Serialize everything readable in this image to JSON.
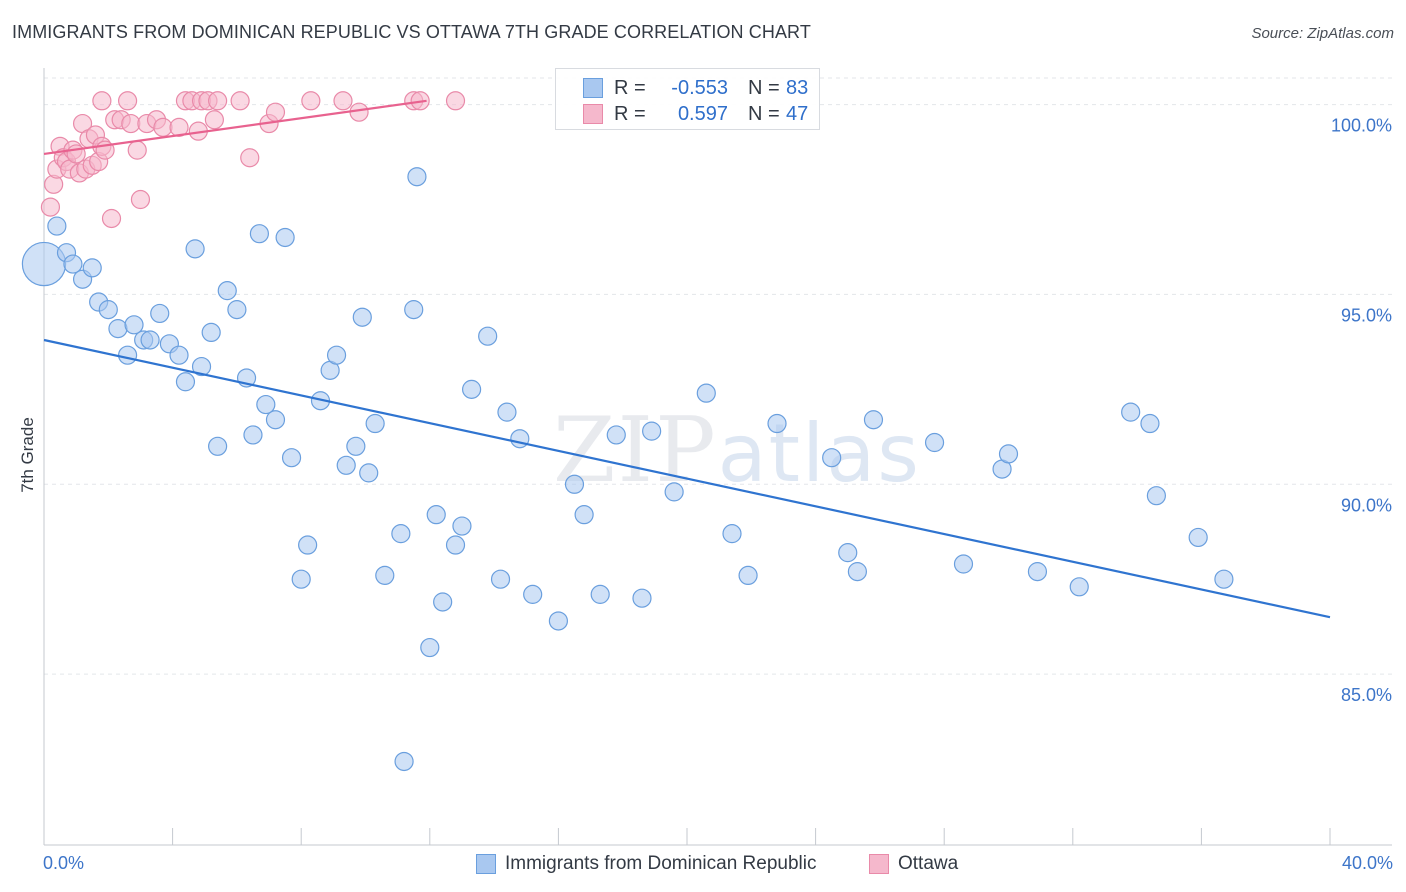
{
  "header": {
    "title": "IMMIGRANTS FROM DOMINICAN REPUBLIC VS OTTAWA 7TH GRADE CORRELATION CHART",
    "source": "Source: ZipAtlas.com"
  },
  "watermark": {
    "zip": "ZIP",
    "atlas": "atlas"
  },
  "legend": {
    "rows": [
      {
        "r_label": "R =",
        "r_value": "-0.553",
        "n_label": "N =",
        "n_value": "83"
      },
      {
        "r_label": "R =",
        "r_value": "0.597",
        "n_label": "N =",
        "n_value": "47"
      }
    ]
  },
  "colors": {
    "blue_fill": "#a9c8f0",
    "blue_stroke": "#6a9fde",
    "blue_line": "#2f74d0",
    "pink_fill": "#f5b8cc",
    "pink_stroke": "#e98aa9",
    "pink_line": "#e8628f",
    "tick_text": "#3d75c9",
    "grid": "#e3e6ea"
  },
  "chart_data": {
    "type": "scatter",
    "title": "IMMIGRANTS FROM DOMINICAN REPUBLIC VS OTTAWA 7TH GRADE CORRELATION CHART",
    "xlabel": "",
    "ylabel": "7th Grade",
    "xlim": [
      0,
      40
    ],
    "ylim": [
      80.5,
      100.7
    ],
    "x_tick_labels": [
      "0.0%",
      "40.0%"
    ],
    "y_ticks": [
      85,
      90,
      95,
      100
    ],
    "y_tick_labels": [
      "85.0%",
      "90.0%",
      "95.0%",
      "100.0%"
    ],
    "grid": true,
    "legend_placement": "top-center",
    "series": [
      {
        "name": "Immigrants from Dominican Republic",
        "color": "#a9c8f0",
        "trend": {
          "x": [
            0,
            40
          ],
          "y": [
            93.8,
            86.5
          ]
        },
        "points": [
          {
            "x": 0.0,
            "y": 95.8,
            "s": 2.4
          },
          {
            "x": 0.4,
            "y": 96.8
          },
          {
            "x": 0.7,
            "y": 96.1
          },
          {
            "x": 0.9,
            "y": 95.8
          },
          {
            "x": 1.2,
            "y": 95.4
          },
          {
            "x": 1.5,
            "y": 95.7
          },
          {
            "x": 1.7,
            "y": 94.8
          },
          {
            "x": 2.0,
            "y": 94.6
          },
          {
            "x": 2.3,
            "y": 94.1
          },
          {
            "x": 2.6,
            "y": 93.4
          },
          {
            "x": 2.8,
            "y": 94.2
          },
          {
            "x": 3.1,
            "y": 93.8
          },
          {
            "x": 3.3,
            "y": 93.8
          },
          {
            "x": 3.6,
            "y": 94.5
          },
          {
            "x": 3.9,
            "y": 93.7
          },
          {
            "x": 4.2,
            "y": 93.4
          },
          {
            "x": 4.4,
            "y": 92.7
          },
          {
            "x": 4.7,
            "y": 96.2
          },
          {
            "x": 4.9,
            "y": 93.1
          },
          {
            "x": 5.2,
            "y": 94.0
          },
          {
            "x": 5.4,
            "y": 91.0
          },
          {
            "x": 5.7,
            "y": 95.1
          },
          {
            "x": 6.0,
            "y": 94.6
          },
          {
            "x": 6.3,
            "y": 92.8
          },
          {
            "x": 6.5,
            "y": 91.3
          },
          {
            "x": 6.7,
            "y": 96.6
          },
          {
            "x": 6.9,
            "y": 92.1
          },
          {
            "x": 7.2,
            "y": 91.7
          },
          {
            "x": 7.5,
            "y": 96.5
          },
          {
            "x": 7.7,
            "y": 90.7
          },
          {
            "x": 8.2,
            "y": 88.4
          },
          {
            "x": 8.0,
            "y": 87.5
          },
          {
            "x": 8.6,
            "y": 92.2
          },
          {
            "x": 8.9,
            "y": 93.0
          },
          {
            "x": 9.1,
            "y": 93.4
          },
          {
            "x": 9.4,
            "y": 90.5
          },
          {
            "x": 9.7,
            "y": 91.0
          },
          {
            "x": 9.9,
            "y": 94.4
          },
          {
            "x": 10.1,
            "y": 90.3
          },
          {
            "x": 10.3,
            "y": 91.6
          },
          {
            "x": 10.6,
            "y": 87.6
          },
          {
            "x": 11.1,
            "y": 88.7
          },
          {
            "x": 11.5,
            "y": 94.6
          },
          {
            "x": 11.6,
            "y": 98.1
          },
          {
            "x": 11.2,
            "y": 82.7
          },
          {
            "x": 12.0,
            "y": 85.7
          },
          {
            "x": 12.2,
            "y": 89.2
          },
          {
            "x": 12.4,
            "y": 86.9
          },
          {
            "x": 12.8,
            "y": 88.4
          },
          {
            "x": 13.0,
            "y": 88.9
          },
          {
            "x": 13.3,
            "y": 92.5
          },
          {
            "x": 13.8,
            "y": 93.9
          },
          {
            "x": 14.2,
            "y": 87.5
          },
          {
            "x": 14.4,
            "y": 91.9
          },
          {
            "x": 14.8,
            "y": 91.2
          },
          {
            "x": 15.2,
            "y": 87.1
          },
          {
            "x": 16.0,
            "y": 86.4
          },
          {
            "x": 16.5,
            "y": 90.0
          },
          {
            "x": 16.8,
            "y": 89.2
          },
          {
            "x": 17.3,
            "y": 87.1
          },
          {
            "x": 17.8,
            "y": 91.3
          },
          {
            "x": 18.6,
            "y": 87.0
          },
          {
            "x": 18.9,
            "y": 91.4
          },
          {
            "x": 19.6,
            "y": 89.8
          },
          {
            "x": 20.6,
            "y": 92.4
          },
          {
            "x": 21.4,
            "y": 88.7
          },
          {
            "x": 21.9,
            "y": 87.6
          },
          {
            "x": 22.8,
            "y": 91.6
          },
          {
            "x": 24.5,
            "y": 90.7
          },
          {
            "x": 25.0,
            "y": 88.2
          },
          {
            "x": 25.3,
            "y": 87.7
          },
          {
            "x": 25.8,
            "y": 91.7
          },
          {
            "x": 27.7,
            "y": 91.1
          },
          {
            "x": 28.6,
            "y": 87.9
          },
          {
            "x": 29.8,
            "y": 90.4
          },
          {
            "x": 30.0,
            "y": 90.8
          },
          {
            "x": 30.9,
            "y": 87.7
          },
          {
            "x": 32.2,
            "y": 87.3
          },
          {
            "x": 33.8,
            "y": 91.9
          },
          {
            "x": 34.4,
            "y": 91.6
          },
          {
            "x": 34.6,
            "y": 89.7
          },
          {
            "x": 35.9,
            "y": 88.6
          },
          {
            "x": 36.7,
            "y": 87.5
          }
        ]
      },
      {
        "name": "Ottawa",
        "color": "#f5b8cc",
        "trend": {
          "x": [
            0,
            11.9
          ],
          "y": [
            98.7,
            100.1
          ]
        },
        "points": [
          {
            "x": 0.2,
            "y": 97.3
          },
          {
            "x": 0.3,
            "y": 97.9
          },
          {
            "x": 0.4,
            "y": 98.3
          },
          {
            "x": 0.5,
            "y": 98.9
          },
          {
            "x": 0.6,
            "y": 98.6
          },
          {
            "x": 0.7,
            "y": 98.5
          },
          {
            "x": 0.8,
            "y": 98.3
          },
          {
            "x": 0.9,
            "y": 98.8
          },
          {
            "x": 1.0,
            "y": 98.7
          },
          {
            "x": 1.1,
            "y": 98.2
          },
          {
            "x": 1.2,
            "y": 99.5
          },
          {
            "x": 1.3,
            "y": 98.3
          },
          {
            "x": 1.4,
            "y": 99.1
          },
          {
            "x": 1.5,
            "y": 98.4
          },
          {
            "x": 1.6,
            "y": 99.2
          },
          {
            "x": 1.7,
            "y": 98.5
          },
          {
            "x": 1.8,
            "y": 98.9
          },
          {
            "x": 1.9,
            "y": 98.8
          },
          {
            "x": 2.1,
            "y": 97.0
          },
          {
            "x": 2.2,
            "y": 99.6
          },
          {
            "x": 1.8,
            "y": 100.1
          },
          {
            "x": 2.4,
            "y": 99.6
          },
          {
            "x": 2.6,
            "y": 100.1
          },
          {
            "x": 2.7,
            "y": 99.5
          },
          {
            "x": 2.9,
            "y": 98.8
          },
          {
            "x": 3.0,
            "y": 97.5
          },
          {
            "x": 3.2,
            "y": 99.5
          },
          {
            "x": 3.5,
            "y": 99.6
          },
          {
            "x": 3.7,
            "y": 99.4
          },
          {
            "x": 4.2,
            "y": 99.4
          },
          {
            "x": 4.4,
            "y": 100.1
          },
          {
            "x": 4.6,
            "y": 100.1
          },
          {
            "x": 4.8,
            "y": 99.3
          },
          {
            "x": 4.9,
            "y": 100.1
          },
          {
            "x": 5.1,
            "y": 100.1
          },
          {
            "x": 5.3,
            "y": 99.6
          },
          {
            "x": 5.4,
            "y": 100.1
          },
          {
            "x": 6.1,
            "y": 100.1
          },
          {
            "x": 6.4,
            "y": 98.6
          },
          {
            "x": 7.0,
            "y": 99.5
          },
          {
            "x": 7.2,
            "y": 99.8
          },
          {
            "x": 8.3,
            "y": 100.1
          },
          {
            "x": 9.3,
            "y": 100.1
          },
          {
            "x": 9.8,
            "y": 99.8
          },
          {
            "x": 11.5,
            "y": 100.1
          },
          {
            "x": 11.7,
            "y": 100.1
          },
          {
            "x": 12.8,
            "y": 100.1
          }
        ]
      }
    ]
  }
}
